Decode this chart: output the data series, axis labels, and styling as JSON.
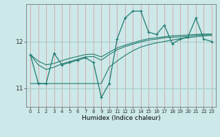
{
  "xlabel": "Humidex (Indice chaleur)",
  "x": [
    0,
    1,
    2,
    3,
    4,
    5,
    6,
    7,
    8,
    9,
    10,
    11,
    12,
    13,
    14,
    15,
    16,
    17,
    18,
    19,
    20,
    21,
    22,
    23
  ],
  "line_main": [
    11.72,
    11.1,
    11.1,
    11.75,
    11.5,
    11.55,
    11.6,
    11.65,
    11.55,
    10.8,
    11.1,
    12.05,
    12.5,
    12.65,
    12.65,
    12.2,
    12.15,
    12.35,
    11.95,
    12.05,
    12.1,
    12.5,
    12.05,
    12.0
  ],
  "line_t1": [
    11.1,
    11.1,
    11.1,
    11.1,
    11.1,
    11.1,
    11.1,
    11.1,
    11.1,
    11.1,
    11.45,
    11.58,
    11.7,
    11.8,
    11.88,
    11.93,
    11.97,
    12.0,
    12.03,
    12.06,
    12.08,
    12.1,
    12.12,
    12.13
  ],
  "line_t2": [
    11.72,
    11.5,
    11.4,
    11.45,
    11.52,
    11.57,
    11.62,
    11.67,
    11.68,
    11.6,
    11.72,
    11.82,
    11.89,
    11.94,
    11.99,
    12.03,
    12.05,
    12.08,
    12.09,
    12.1,
    12.11,
    12.13,
    12.14,
    12.14
  ],
  "line_t3": [
    11.72,
    11.58,
    11.5,
    11.53,
    11.59,
    11.64,
    11.68,
    11.72,
    11.73,
    11.67,
    11.77,
    11.86,
    11.92,
    11.97,
    12.02,
    12.06,
    12.08,
    12.1,
    12.12,
    12.13,
    12.14,
    12.15,
    12.16,
    12.16
  ],
  "bg_color": "#cce8e8",
  "line_color": "#1e7b6e",
  "vgrid_color": "#d4a0a0",
  "hgrid_color": "#a8cccc",
  "ylim": [
    10.6,
    12.8
  ],
  "yticks": [
    11,
    12
  ],
  "xlim": [
    -0.5,
    23.5
  ]
}
